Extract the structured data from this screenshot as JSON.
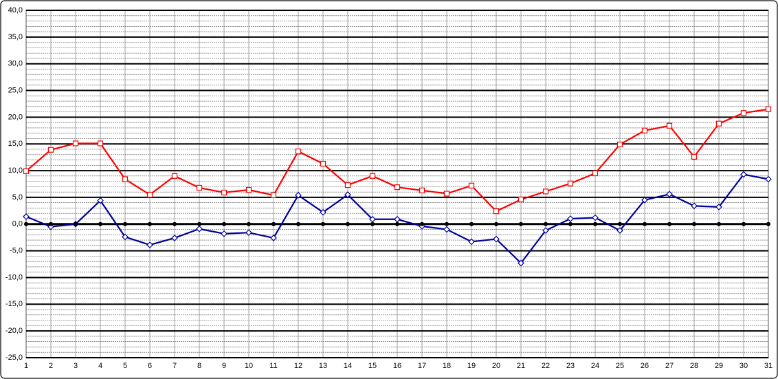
{
  "chart_data": {
    "type": "line",
    "categories": [
      1,
      2,
      3,
      4,
      5,
      6,
      7,
      8,
      9,
      10,
      11,
      12,
      13,
      14,
      15,
      16,
      17,
      18,
      19,
      20,
      21,
      22,
      23,
      24,
      25,
      26,
      27,
      28,
      29,
      30,
      31
    ],
    "series": [
      {
        "color": "#ff0000",
        "marker": "square",
        "values": [
          9.9,
          13.9,
          15.1,
          15.1,
          8.4,
          5.5,
          9.0,
          6.8,
          5.9,
          6.4,
          5.4,
          13.6,
          11.3,
          7.3,
          9.0,
          6.9,
          6.3,
          5.7,
          7.2,
          2.4,
          4.6,
          6.1,
          7.6,
          9.5,
          14.9,
          17.5,
          18.4,
          12.6,
          18.8,
          20.8,
          21.5
        ]
      },
      {
        "color": "#000099",
        "marker": "diamond",
        "values": [
          1.4,
          -0.5,
          0.0,
          4.4,
          -2.4,
          -3.9,
          -2.6,
          -0.9,
          -1.8,
          -1.6,
          -2.6,
          5.4,
          2.2,
          5.5,
          0.9,
          0.9,
          -0.4,
          -1.0,
          -3.3,
          -2.8,
          -7.3,
          -1.2,
          1.0,
          1.2,
          -1.2,
          4.5,
          5.6,
          3.4,
          3.2,
          9.3,
          8.4
        ]
      },
      {
        "color": "#000000",
        "marker": "circle",
        "values": [
          0,
          0,
          0,
          0,
          0,
          0,
          0,
          0,
          0,
          0,
          0,
          0,
          0,
          0,
          0,
          0,
          0,
          0,
          0,
          0,
          0,
          0,
          0,
          0,
          0,
          0,
          0,
          0,
          0,
          0,
          0
        ]
      }
    ],
    "ylim": [
      -25,
      40
    ],
    "yticks": [
      {
        "value": -25,
        "label": "-25,0"
      },
      {
        "value": -20,
        "label": "-20,0"
      },
      {
        "value": -15,
        "label": "-15,0"
      },
      {
        "value": -10,
        "label": "-10,0"
      },
      {
        "value": -5,
        "label": "-5,0"
      },
      {
        "value": 0,
        "label": "0,0"
      },
      {
        "value": 5,
        "label": "5,0"
      },
      {
        "value": 10,
        "label": "10,0"
      },
      {
        "value": 15,
        "label": "15,0"
      },
      {
        "value": 20,
        "label": "20,0"
      },
      {
        "value": 25,
        "label": "25,0"
      },
      {
        "value": 30,
        "label": "30,0"
      },
      {
        "value": 35,
        "label": "35,0"
      },
      {
        "value": 40,
        "label": "40,0"
      }
    ],
    "grid": true
  }
}
